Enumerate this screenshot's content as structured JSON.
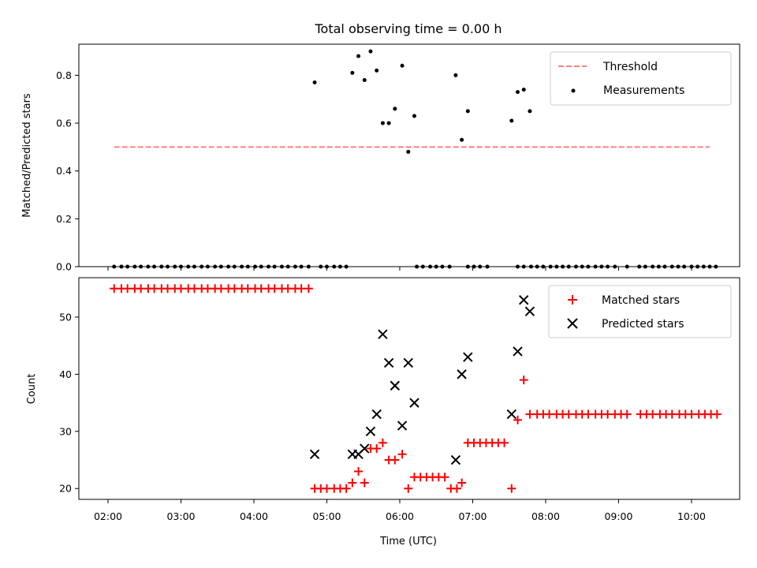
{
  "chart_data": [
    {
      "type": "scatter",
      "title": "Total observing time = 0.00 h",
      "xlabel": "",
      "ylabel": "Matched/Predicted stars",
      "ylim": [
        0,
        0.93
      ],
      "yticks": [
        "0.0",
        "0.2",
        "0.4",
        "0.6",
        "0.8"
      ],
      "legend": {
        "position": "upper right",
        "entries": [
          "Threshold",
          "Measurements"
        ]
      },
      "threshold": {
        "name": "Threshold",
        "y": 0.5,
        "x_range": [
          "02:05",
          "10:15"
        ],
        "color": "#ff7f7f"
      },
      "zero_series_times": [
        "02:05",
        "02:11",
        "02:16",
        "02:22",
        "02:27",
        "02:33",
        "02:38",
        "02:44",
        "02:49",
        "02:55",
        "03:00",
        "03:06",
        "03:11",
        "03:17",
        "03:22",
        "03:28",
        "03:33",
        "03:39",
        "03:44",
        "03:50",
        "03:55",
        "04:01",
        "04:06",
        "04:12",
        "04:17",
        "04:23",
        "04:28",
        "04:34",
        "04:39",
        "04:45",
        "04:55",
        "05:00",
        "05:06",
        "05:11",
        "05:16",
        "06:14",
        "06:19",
        "06:25",
        "06:30",
        "06:35",
        "06:41",
        "06:56",
        "07:01",
        "07:06",
        "07:12",
        "07:37",
        "07:42",
        "07:48",
        "07:53",
        "07:58",
        "08:04",
        "08:09",
        "08:14",
        "08:19",
        "08:25",
        "08:30",
        "08:35",
        "08:41",
        "08:46",
        "08:51",
        "08:57",
        "09:07",
        "09:17",
        "09:22",
        "09:28",
        "09:33",
        "09:38",
        "09:44",
        "09:49",
        "09:54",
        "10:00",
        "10:05",
        "10:10",
        "10:15",
        "10:20"
      ],
      "points": [
        {
          "x": "04:50",
          "y": 0.77
        },
        {
          "x": "05:21",
          "y": 0.81
        },
        {
          "x": "05:26",
          "y": 0.88
        },
        {
          "x": "05:31",
          "y": 0.78
        },
        {
          "x": "05:36",
          "y": 0.9
        },
        {
          "x": "05:41",
          "y": 0.82
        },
        {
          "x": "05:46",
          "y": 0.6
        },
        {
          "x": "05:51",
          "y": 0.6
        },
        {
          "x": "05:56",
          "y": 0.66
        },
        {
          "x": "06:02",
          "y": 0.84
        },
        {
          "x": "06:07",
          "y": 0.48
        },
        {
          "x": "06:12",
          "y": 0.63
        },
        {
          "x": "06:46",
          "y": 0.8
        },
        {
          "x": "06:51",
          "y": 0.53
        },
        {
          "x": "06:56",
          "y": 0.65
        },
        {
          "x": "07:32",
          "y": 0.61
        },
        {
          "x": "07:37",
          "y": 0.73
        },
        {
          "x": "07:42",
          "y": 0.74
        },
        {
          "x": "07:47",
          "y": 0.65
        }
      ]
    },
    {
      "type": "scatter",
      "title": "",
      "xlabel": "Time (UTC)",
      "ylabel": "Count",
      "ylim": [
        18.1,
        56.9
      ],
      "yticks": [
        "20",
        "30",
        "40",
        "50"
      ],
      "xticks": [
        "02:00",
        "03:00",
        "04:00",
        "05:00",
        "06:00",
        "07:00",
        "08:00",
        "09:00",
        "10:00"
      ],
      "legend": {
        "position": "upper right",
        "entries": [
          "Matched stars",
          "Predicted stars"
        ]
      },
      "series": [
        {
          "name": "Matched stars",
          "marker": "+",
          "color": "#ff0000",
          "points": [
            {
              "x": "02:05",
              "y": 55
            },
            {
              "x": "02:11",
              "y": 55
            },
            {
              "x": "02:16",
              "y": 55
            },
            {
              "x": "02:22",
              "y": 55
            },
            {
              "x": "02:27",
              "y": 55
            },
            {
              "x": "02:33",
              "y": 55
            },
            {
              "x": "02:38",
              "y": 55
            },
            {
              "x": "02:44",
              "y": 55
            },
            {
              "x": "02:49",
              "y": 55
            },
            {
              "x": "02:55",
              "y": 55
            },
            {
              "x": "03:00",
              "y": 55
            },
            {
              "x": "03:06",
              "y": 55
            },
            {
              "x": "03:11",
              "y": 55
            },
            {
              "x": "03:17",
              "y": 55
            },
            {
              "x": "03:22",
              "y": 55
            },
            {
              "x": "03:28",
              "y": 55
            },
            {
              "x": "03:33",
              "y": 55
            },
            {
              "x": "03:39",
              "y": 55
            },
            {
              "x": "03:44",
              "y": 55
            },
            {
              "x": "03:50",
              "y": 55
            },
            {
              "x": "03:55",
              "y": 55
            },
            {
              "x": "04:01",
              "y": 55
            },
            {
              "x": "04:06",
              "y": 55
            },
            {
              "x": "04:12",
              "y": 55
            },
            {
              "x": "04:17",
              "y": 55
            },
            {
              "x": "04:23",
              "y": 55
            },
            {
              "x": "04:28",
              "y": 55
            },
            {
              "x": "04:34",
              "y": 55
            },
            {
              "x": "04:39",
              "y": 55
            },
            {
              "x": "04:45",
              "y": 55
            },
            {
              "x": "04:50",
              "y": 20
            },
            {
              "x": "04:55",
              "y": 20
            },
            {
              "x": "05:00",
              "y": 20
            },
            {
              "x": "05:06",
              "y": 20
            },
            {
              "x": "05:11",
              "y": 20
            },
            {
              "x": "05:16",
              "y": 20
            },
            {
              "x": "05:21",
              "y": 21
            },
            {
              "x": "05:26",
              "y": 23
            },
            {
              "x": "05:31",
              "y": 21
            },
            {
              "x": "05:36",
              "y": 27
            },
            {
              "x": "05:41",
              "y": 27
            },
            {
              "x": "05:46",
              "y": 28
            },
            {
              "x": "05:51",
              "y": 25
            },
            {
              "x": "05:56",
              "y": 25
            },
            {
              "x": "06:02",
              "y": 26
            },
            {
              "x": "06:07",
              "y": 20
            },
            {
              "x": "06:12",
              "y": 22
            },
            {
              "x": "06:17",
              "y": 22
            },
            {
              "x": "06:22",
              "y": 22
            },
            {
              "x": "06:27",
              "y": 22
            },
            {
              "x": "06:32",
              "y": 22
            },
            {
              "x": "06:37",
              "y": 22
            },
            {
              "x": "06:42",
              "y": 20
            },
            {
              "x": "06:47",
              "y": 20
            },
            {
              "x": "06:51",
              "y": 21
            },
            {
              "x": "06:56",
              "y": 28
            },
            {
              "x": "07:01",
              "y": 28
            },
            {
              "x": "07:06",
              "y": 28
            },
            {
              "x": "07:11",
              "y": 28
            },
            {
              "x": "07:16",
              "y": 28
            },
            {
              "x": "07:21",
              "y": 28
            },
            {
              "x": "07:26",
              "y": 28
            },
            {
              "x": "07:32",
              "y": 20
            },
            {
              "x": "07:37",
              "y": 32
            },
            {
              "x": "07:42",
              "y": 39
            },
            {
              "x": "07:47",
              "y": 33
            },
            {
              "x": "07:53",
              "y": 33
            },
            {
              "x": "07:58",
              "y": 33
            },
            {
              "x": "08:03",
              "y": 33
            },
            {
              "x": "08:09",
              "y": 33
            },
            {
              "x": "08:14",
              "y": 33
            },
            {
              "x": "08:19",
              "y": 33
            },
            {
              "x": "08:25",
              "y": 33
            },
            {
              "x": "08:30",
              "y": 33
            },
            {
              "x": "08:35",
              "y": 33
            },
            {
              "x": "08:41",
              "y": 33
            },
            {
              "x": "08:46",
              "y": 33
            },
            {
              "x": "08:51",
              "y": 33
            },
            {
              "x": "08:57",
              "y": 33
            },
            {
              "x": "09:02",
              "y": 33
            },
            {
              "x": "09:07",
              "y": 33
            },
            {
              "x": "09:18",
              "y": 33
            },
            {
              "x": "09:23",
              "y": 33
            },
            {
              "x": "09:28",
              "y": 33
            },
            {
              "x": "09:34",
              "y": 33
            },
            {
              "x": "09:39",
              "y": 33
            },
            {
              "x": "09:44",
              "y": 33
            },
            {
              "x": "09:50",
              "y": 33
            },
            {
              "x": "09:55",
              "y": 33
            },
            {
              "x": "10:00",
              "y": 33
            },
            {
              "x": "10:06",
              "y": 33
            },
            {
              "x": "10:11",
              "y": 33
            },
            {
              "x": "10:16",
              "y": 33
            },
            {
              "x": "10:21",
              "y": 33
            }
          ]
        },
        {
          "name": "Predicted stars",
          "marker": "x",
          "color": "#000000",
          "points": [
            {
              "x": "04:50",
              "y": 26
            },
            {
              "x": "05:21",
              "y": 26
            },
            {
              "x": "05:26",
              "y": 26
            },
            {
              "x": "05:31",
              "y": 27
            },
            {
              "x": "05:36",
              "y": 30
            },
            {
              "x": "05:41",
              "y": 33
            },
            {
              "x": "05:46",
              "y": 47
            },
            {
              "x": "05:51",
              "y": 42
            },
            {
              "x": "05:56",
              "y": 38
            },
            {
              "x": "06:02",
              "y": 31
            },
            {
              "x": "06:07",
              "y": 42
            },
            {
              "x": "06:12",
              "y": 35
            },
            {
              "x": "06:46",
              "y": 25
            },
            {
              "x": "06:51",
              "y": 40
            },
            {
              "x": "06:56",
              "y": 43
            },
            {
              "x": "07:32",
              "y": 33
            },
            {
              "x": "07:37",
              "y": 44
            },
            {
              "x": "07:42",
              "y": 53
            },
            {
              "x": "07:47",
              "y": 51
            }
          ]
        }
      ]
    }
  ]
}
